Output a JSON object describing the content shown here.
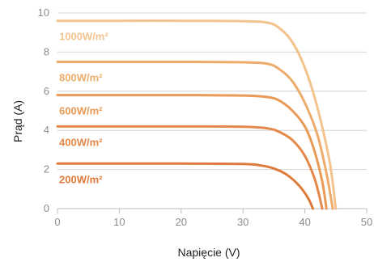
{
  "chart_data": {
    "type": "line",
    "title": "",
    "xlabel": "Napięcie (V)",
    "ylabel": "Prąd (A)",
    "xlim": [
      0,
      50
    ],
    "ylim": [
      0,
      10
    ],
    "xticks": [
      0,
      10,
      20,
      30,
      40,
      50
    ],
    "yticks": [
      0,
      2,
      4,
      6,
      8,
      10
    ],
    "grid": "horizontal",
    "legend": "labels above each curve",
    "series": [
      {
        "name": "1000W/m²",
        "color": "#f2c38c",
        "isc": 9.6,
        "voc": 45.0,
        "points": [
          [
            0,
            9.6
          ],
          [
            10,
            9.6
          ],
          [
            20,
            9.6
          ],
          [
            30,
            9.58
          ],
          [
            34,
            9.5
          ],
          [
            36,
            9.2
          ],
          [
            38,
            8.5
          ],
          [
            40,
            7.2
          ],
          [
            42,
            5.2
          ],
          [
            44,
            2.4
          ],
          [
            45,
            0
          ]
        ]
      },
      {
        "name": "800W/m²",
        "color": "#eeac6c",
        "isc": 7.5,
        "voc": 44.5,
        "points": [
          [
            0,
            7.5
          ],
          [
            10,
            7.5
          ],
          [
            20,
            7.5
          ],
          [
            30,
            7.48
          ],
          [
            34,
            7.4
          ],
          [
            36,
            7.1
          ],
          [
            38,
            6.5
          ],
          [
            40,
            5.4
          ],
          [
            42,
            3.8
          ],
          [
            43.5,
            1.8
          ],
          [
            44.5,
            0
          ]
        ]
      },
      {
        "name": "600W/m²",
        "color": "#e99a55",
        "isc": 5.8,
        "voc": 43.5,
        "points": [
          [
            0,
            5.8
          ],
          [
            10,
            5.8
          ],
          [
            20,
            5.8
          ],
          [
            30,
            5.78
          ],
          [
            34,
            5.7
          ],
          [
            36,
            5.5
          ],
          [
            38,
            5.0
          ],
          [
            40,
            4.2
          ],
          [
            41.5,
            3.0
          ],
          [
            42.8,
            1.4
          ],
          [
            43.5,
            0
          ]
        ]
      },
      {
        "name": "400W/m²",
        "color": "#e4894a",
        "isc": 4.2,
        "voc": 42.8,
        "points": [
          [
            0,
            4.2
          ],
          [
            10,
            4.2
          ],
          [
            20,
            4.2
          ],
          [
            30,
            4.18
          ],
          [
            34,
            4.1
          ],
          [
            36,
            3.9
          ],
          [
            38,
            3.5
          ],
          [
            40,
            2.7
          ],
          [
            41.5,
            1.6
          ],
          [
            42.3,
            0.7
          ],
          [
            42.8,
            0
          ]
        ]
      },
      {
        "name": "200W/m²",
        "color": "#dd7a3c",
        "isc": 2.3,
        "voc": 41.3,
        "points": [
          [
            0,
            2.3
          ],
          [
            10,
            2.3
          ],
          [
            20,
            2.3
          ],
          [
            30,
            2.28
          ],
          [
            33,
            2.2
          ],
          [
            35,
            2.05
          ],
          [
            37,
            1.75
          ],
          [
            39,
            1.2
          ],
          [
            40.5,
            0.55
          ],
          [
            41.3,
            0
          ]
        ]
      }
    ]
  }
}
